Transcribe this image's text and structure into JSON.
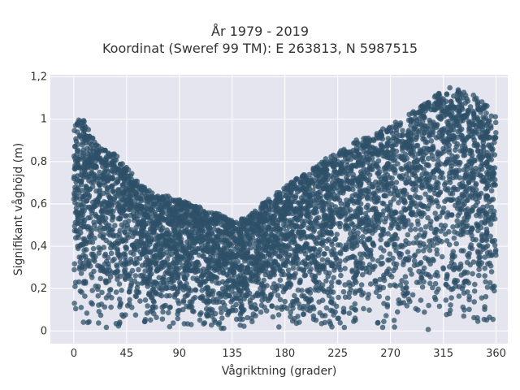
{
  "chart_data": {
    "type": "scatter",
    "title": "År 1979 - 2019",
    "subtitle": "Koordinat (Sweref 99 TM): E 263813, N 5987515",
    "xlabel": "Vågriktning (grader)",
    "ylabel": "Signifikant våghöjd (m)",
    "xlim": [
      -20,
      370
    ],
    "ylim": [
      -0.06,
      1.21
    ],
    "x_ticks": [
      0,
      45,
      90,
      135,
      180,
      225,
      270,
      315,
      360
    ],
    "x_tick_labels": [
      "0",
      "45",
      "90",
      "135",
      "180",
      "225",
      "270",
      "315",
      "360"
    ],
    "y_ticks": [
      0,
      0.2,
      0.4,
      0.6,
      0.8,
      1.0,
      1.2
    ],
    "y_tick_labels": [
      "0",
      "0,2",
      "0,4",
      "0,6",
      "0,8",
      "1",
      "1,2"
    ],
    "grid": true,
    "legend": "none",
    "marker_color": "#2e5068",
    "background_color": "#e5e5ef",
    "series": [
      {
        "values_note_free": true,
        "envelope": {
          "x": [
            0,
            5,
            10,
            15,
            20,
            30,
            40,
            50,
            60,
            70,
            80,
            90,
            100,
            110,
            120,
            130,
            140,
            150,
            160,
            170,
            180,
            190,
            200,
            210,
            220,
            230,
            240,
            250,
            260,
            270,
            280,
            290,
            300,
            310,
            320,
            330,
            340,
            350,
            358
          ],
          "y": [
            0.95,
            1.05,
            0.98,
            0.92,
            0.88,
            0.86,
            0.82,
            0.74,
            0.68,
            0.64,
            0.64,
            0.62,
            0.6,
            0.58,
            0.56,
            0.54,
            0.52,
            0.55,
            0.6,
            0.64,
            0.68,
            0.72,
            0.75,
            0.8,
            0.83,
            0.86,
            0.9,
            0.92,
            0.94,
            0.98,
            1.0,
            1.04,
            1.08,
            1.12,
            1.15,
            1.14,
            1.12,
            1.08,
            1.02
          ]
        }
      }
    ]
  }
}
